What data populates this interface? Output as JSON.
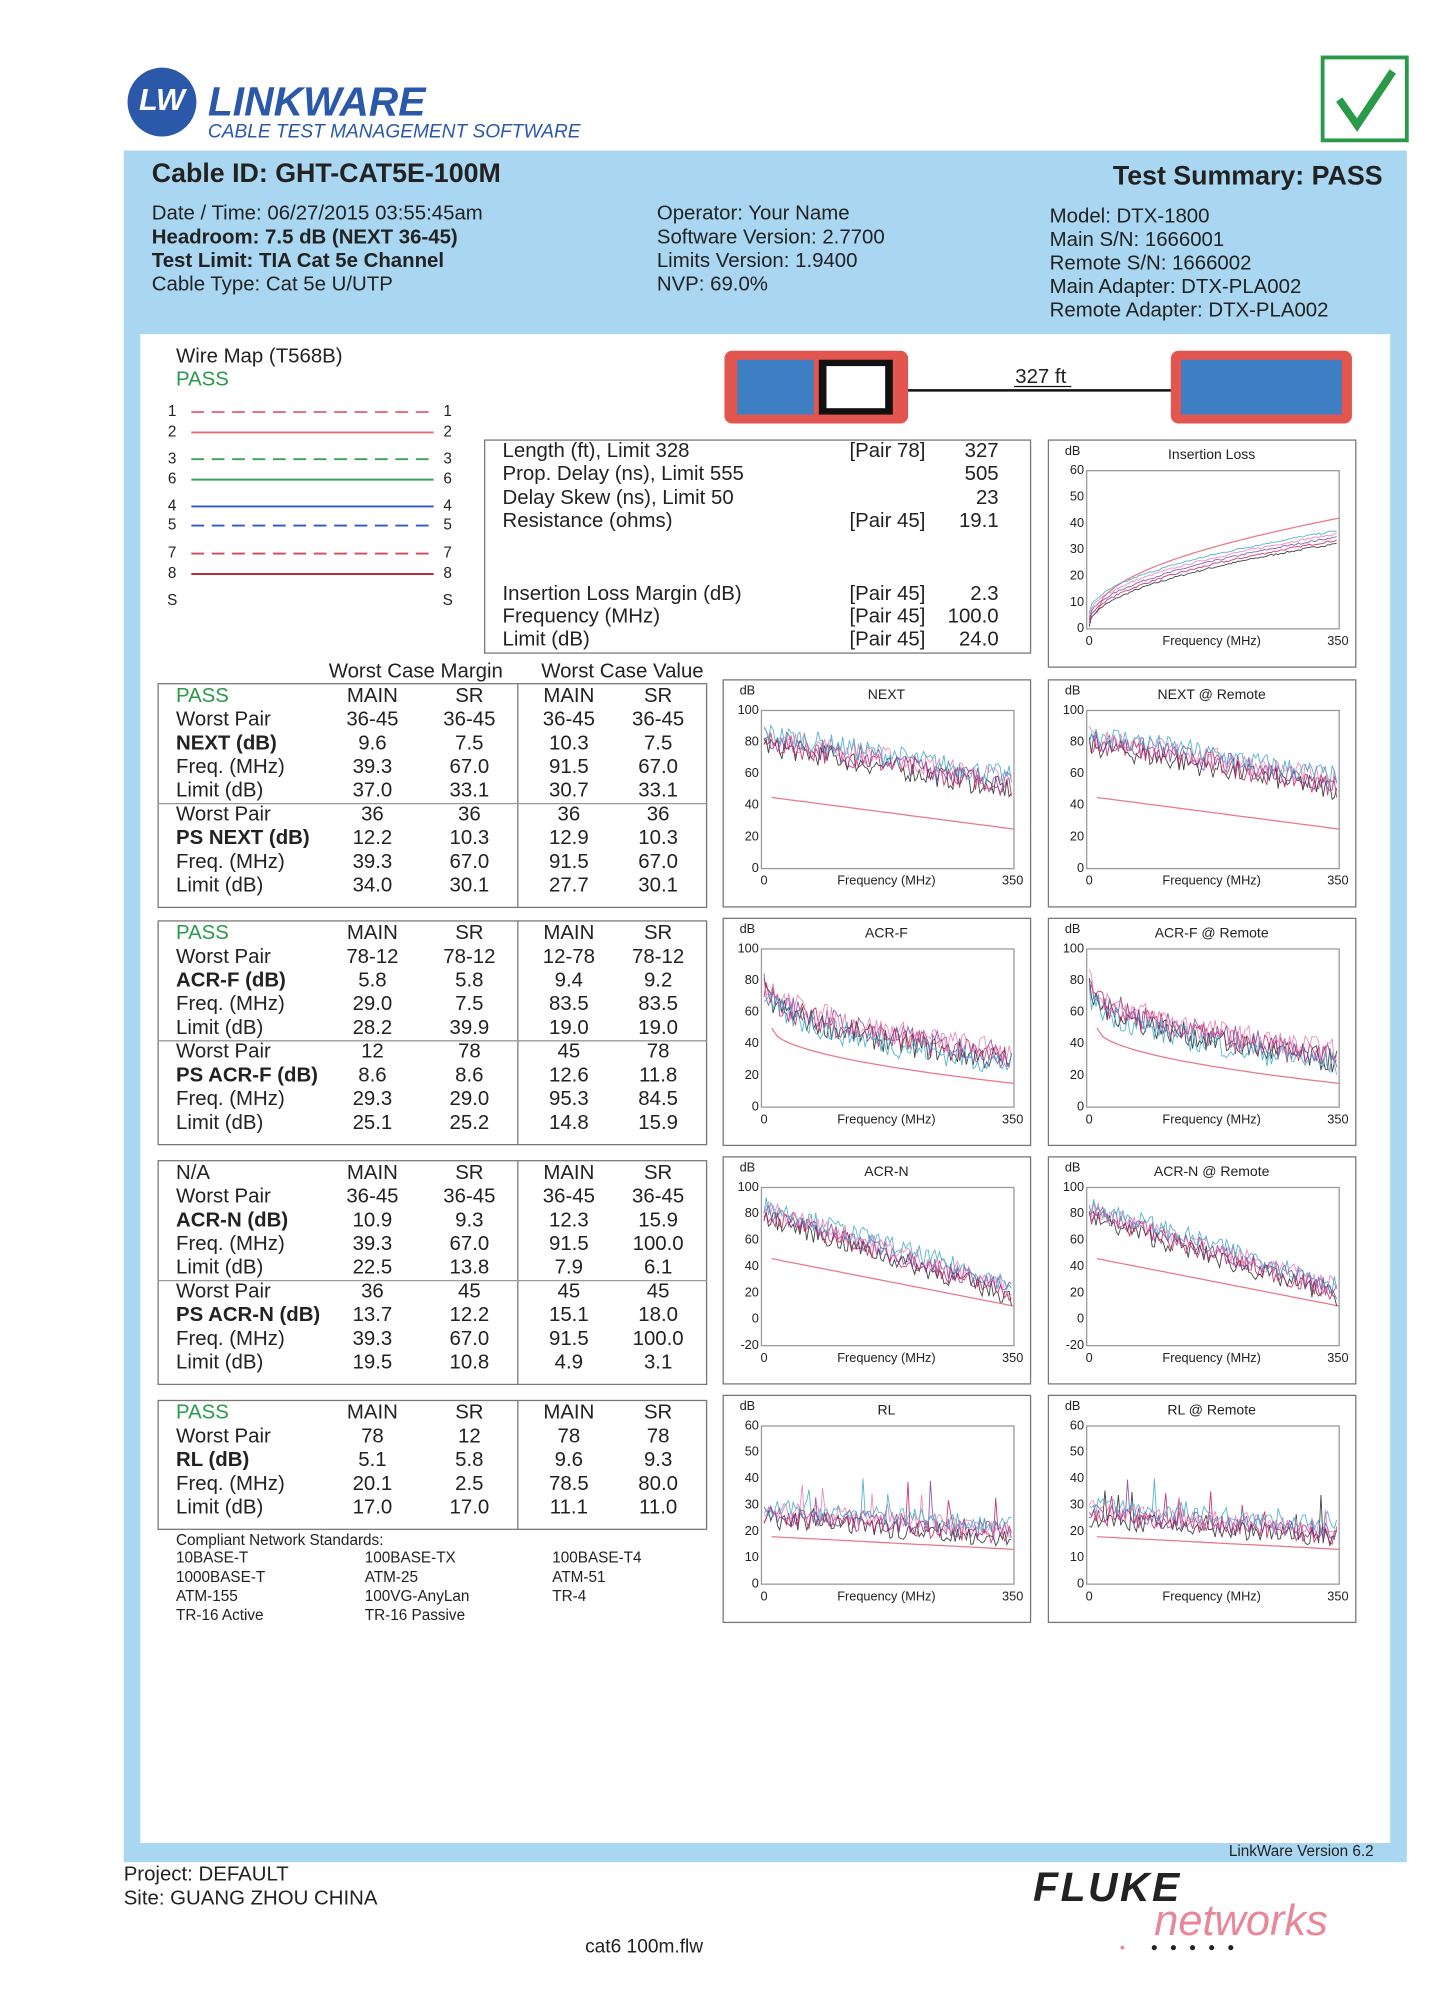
{
  "header": {
    "logo": "LW",
    "brand": "LINKWARE",
    "tagline": "CABLE TEST MANAGEMENT SOFTWARE"
  },
  "cable_id": "Cable ID: GHT-CAT5E-100M",
  "summary": "Test Summary: PASS",
  "info": [
    [
      "Date / Time: 06/27/2015 03:55:45am",
      "Headroom: 7.5 dB (NEXT 36-45)",
      "Test Limit: TIA Cat 5e Channel",
      "Cable Type: Cat 5e U/UTP"
    ],
    [
      "Operator: Your Name",
      "Software Version: 2.7700",
      "Limits Version: 1.9400",
      "NVP: 69.0%"
    ],
    [
      "Model: DTX-1800",
      "Main S/N: 1666001",
      "Remote S/N: 1666002",
      "Main Adapter: DTX-PLA002",
      "Remote Adapter: DTX-PLA002"
    ]
  ],
  "wire_map": {
    "title": "Wire Map (T568B)",
    "status": "PASS",
    "pins": [
      "1",
      "2",
      "3",
      "6",
      "4",
      "5",
      "7",
      "8",
      "S"
    ]
  },
  "length_display": "327 ft",
  "measurements": [
    {
      "label": "Length (ft), Limit 328",
      "pair": "[Pair 78]",
      "value": "327"
    },
    {
      "label": "Prop. Delay (ns), Limit 555",
      "value": "505"
    },
    {
      "label": "Delay Skew (ns), Limit 50",
      "value": "23"
    },
    {
      "label": "Resistance (ohms)",
      "pair": "[Pair 45]",
      "value": "19.1"
    },
    {
      "label": "Insertion Loss Margin (dB)",
      "pair": "[Pair 45]",
      "value": "2.3"
    },
    {
      "label": "Frequency (MHz)",
      "pair": "[Pair 45]",
      "value": "100.0"
    },
    {
      "label": "Limit (dB)",
      "pair": "[Pair 45]",
      "value": "24.0"
    }
  ],
  "table_headings": [
    "Worst Case Margin",
    "Worst Case Value"
  ],
  "tables": [
    {
      "header": [
        "PASS",
        "MAIN",
        "SR",
        "MAIN",
        "SR"
      ],
      "rows": [
        [
          "Worst Pair",
          "36-45",
          "36-45",
          "36-45",
          "36-45"
        ],
        [
          "NEXT (dB)",
          "9.6",
          "7.5",
          "10.3",
          "7.5"
        ],
        [
          "Freq. (MHz)",
          "39.3",
          "67.0",
          "91.5",
          "67.0"
        ],
        [
          "Limit (dB)",
          "37.0",
          "33.1",
          "30.7",
          "33.1"
        ],
        [
          "Worst Pair",
          "36",
          "36",
          "36",
          "36"
        ],
        [
          "PS NEXT (dB)",
          "12.2",
          "10.3",
          "12.9",
          "10.3"
        ],
        [
          "Freq. (MHz)",
          "39.3",
          "67.0",
          "91.5",
          "67.0"
        ],
        [
          "Limit (dB)",
          "34.0",
          "30.1",
          "27.7",
          "30.1"
        ]
      ]
    },
    {
      "header": [
        "PASS",
        "MAIN",
        "SR",
        "MAIN",
        "SR"
      ],
      "rows": [
        [
          "Worst Pair",
          "78-12",
          "78-12",
          "12-78",
          "78-12"
        ],
        [
          "ACR-F (dB)",
          "5.8",
          "5.8",
          "9.4",
          "9.2"
        ],
        [
          "Freq. (MHz)",
          "29.0",
          "7.5",
          "83.5",
          "83.5"
        ],
        [
          "Limit (dB)",
          "28.2",
          "39.9",
          "19.0",
          "19.0"
        ],
        [
          "Worst Pair",
          "12",
          "78",
          "45",
          "78"
        ],
        [
          "PS ACR-F (dB)",
          "8.6",
          "8.6",
          "12.6",
          "11.8"
        ],
        [
          "Freq. (MHz)",
          "29.3",
          "29.0",
          "95.3",
          "84.5"
        ],
        [
          "Limit (dB)",
          "25.1",
          "25.2",
          "14.8",
          "15.9"
        ]
      ]
    },
    {
      "header": [
        "N/A",
        "MAIN",
        "SR",
        "MAIN",
        "SR"
      ],
      "rows": [
        [
          "Worst Pair",
          "36-45",
          "36-45",
          "36-45",
          "36-45"
        ],
        [
          "ACR-N (dB)",
          "10.9",
          "9.3",
          "12.3",
          "15.9"
        ],
        [
          "Freq. (MHz)",
          "39.3",
          "67.0",
          "91.5",
          "100.0"
        ],
        [
          "Limit (dB)",
          "22.5",
          "13.8",
          "7.9",
          "6.1"
        ],
        [
          "Worst Pair",
          "36",
          "45",
          "45",
          "45"
        ],
        [
          "PS ACR-N (dB)",
          "13.7",
          "12.2",
          "15.1",
          "18.0"
        ],
        [
          "Freq. (MHz)",
          "39.3",
          "67.0",
          "91.5",
          "100.0"
        ],
        [
          "Limit (dB)",
          "19.5",
          "10.8",
          "4.9",
          "3.1"
        ]
      ]
    },
    {
      "header": [
        "PASS",
        "MAIN",
        "SR",
        "MAIN",
        "SR"
      ],
      "rows": [
        [
          "Worst Pair",
          "78",
          "12",
          "78",
          "78"
        ],
        [
          "RL (dB)",
          "5.1",
          "5.8",
          "9.6",
          "9.3"
        ],
        [
          "Freq. (MHz)",
          "20.1",
          "2.5",
          "78.5",
          "80.0"
        ],
        [
          "Limit (dB)",
          "17.0",
          "17.0",
          "11.1",
          "11.0"
        ]
      ]
    }
  ],
  "standards": {
    "title": "Compliant Network Standards:",
    "columns": [
      [
        "10BASE-T",
        "1000BASE-T",
        "ATM-155",
        "TR-16 Active"
      ],
      [
        "100BASE-TX",
        "ATM-25",
        "100VG-AnyLan",
        "TR-16 Passive"
      ],
      [
        "100BASE-T4",
        "ATM-51",
        "TR-4"
      ]
    ]
  },
  "graphs": [
    {
      "title": "Insertion Loss",
      "unit": "dB",
      "yticks": [
        0,
        10,
        20,
        30,
        40,
        50,
        60
      ],
      "x_start": "0",
      "x_label": "Frequency (MHz)",
      "x_end": "350"
    },
    {
      "title": "NEXT",
      "unit": "dB",
      "yticks": [
        0,
        20,
        40,
        60,
        80,
        100
      ],
      "x_start": "0",
      "x_label": "Frequency (MHz)",
      "x_end": "350"
    },
    {
      "title": "NEXT @ Remote",
      "unit": "dB",
      "yticks": [
        0,
        20,
        40,
        60,
        80,
        100
      ],
      "x_start": "0",
      "x_label": "Frequency (MHz)",
      "x_end": "350"
    },
    {
      "title": "ACR-F",
      "unit": "dB",
      "yticks": [
        0,
        20,
        40,
        60,
        80,
        100
      ],
      "x_start": "0",
      "x_label": "Frequency (MHz)",
      "x_end": "350"
    },
    {
      "title": "ACR-F @ Remote",
      "unit": "dB",
      "yticks": [
        0,
        20,
        40,
        60,
        80,
        100
      ],
      "x_start": "0",
      "x_label": "Frequency (MHz)",
      "x_end": "350"
    },
    {
      "title": "ACR-N",
      "unit": "dB",
      "yticks": [
        -20,
        0,
        20,
        40,
        60,
        80,
        100
      ],
      "x_start": "0",
      "x_label": "Frequency (MHz)",
      "x_end": "350"
    },
    {
      "title": "ACR-N @ Remote",
      "unit": "dB",
      "yticks": [
        -20,
        0,
        20,
        40,
        60,
        80,
        100
      ],
      "x_start": "0",
      "x_label": "Frequency (MHz)",
      "x_end": "350"
    },
    {
      "title": "RL",
      "unit": "dB",
      "yticks": [
        0,
        10,
        20,
        30,
        40,
        50,
        60
      ],
      "x_start": "0",
      "x_label": "Frequency (MHz)",
      "x_end": "350"
    },
    {
      "title": "RL @ Remote",
      "unit": "dB",
      "yticks": [
        0,
        10,
        20,
        30,
        40,
        50,
        60
      ],
      "x_start": "0",
      "x_label": "Frequency (MHz)",
      "x_end": "350"
    }
  ],
  "footer": {
    "version": "LinkWare Version 6.2",
    "project": "Project: DEFAULT",
    "site": "Site: GUANG ZHOU CHINA",
    "file": "cat6 100m.flw",
    "brand": "FLUKE",
    "brand2": "networks"
  }
}
